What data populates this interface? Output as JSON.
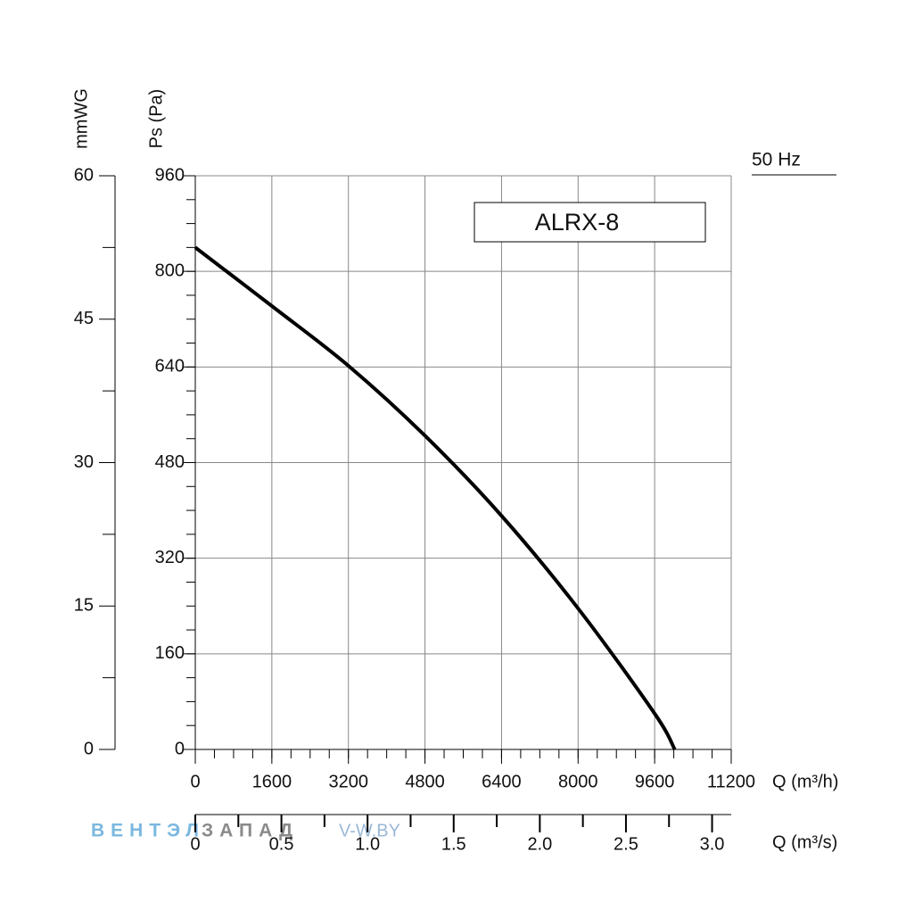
{
  "chart_data": {
    "type": "line",
    "title": "ALRX-8",
    "subtitle": "50 Hz",
    "x_label": "Q (m³/h)",
    "y_label": "Ps (Pa)",
    "y2_label": "mmWG",
    "x2_label": "Q (m³/s)",
    "x": [
      0,
      1600,
      3200,
      4800,
      6400,
      8000,
      9600,
      10020
    ],
    "series": [
      {
        "name": "ALRX-8",
        "color": "#000000",
        "values": [
          840,
          742,
          642,
          525,
          391,
          236,
          60,
          0
        ]
      }
    ],
    "xlim": [
      0,
      11200
    ],
    "xticks": [
      0,
      1600,
      3200,
      4800,
      6400,
      8000,
      9600,
      11200
    ],
    "xminorticks": [
      0,
      400,
      800,
      1200,
      1600,
      2000,
      2400,
      2800,
      3200,
      3600,
      4000,
      4400,
      4800,
      5200,
      5600,
      6000,
      6400,
      6800,
      7200,
      7600,
      8000,
      8400,
      8800,
      9200,
      9600,
      10000,
      10400,
      10800,
      11200
    ],
    "ylim": [
      0,
      960
    ],
    "yticks": [
      0,
      160,
      320,
      480,
      640,
      800,
      960
    ],
    "yminorticks": [
      0,
      40,
      80,
      120,
      160,
      200,
      240,
      280,
      320,
      360,
      400,
      440,
      480,
      520,
      560,
      600,
      640,
      680,
      720,
      760,
      800,
      840,
      880,
      920,
      960
    ],
    "y2lim": [
      0,
      60
    ],
    "y2ticks": [
      0,
      15,
      30,
      45,
      60
    ],
    "y2minorticks": [
      7.5,
      22.5,
      37.5,
      52.5
    ],
    "x2lim": [
      0,
      3.1111
    ],
    "x2ticks": [
      0,
      0.5,
      {
        "value": 1,
        "label": "1.0"
      },
      1.5,
      {
        "value": 2,
        "label": "2.0"
      },
      2.5,
      {
        "value": 3,
        "label": "3.0"
      }
    ],
    "x2minorticks": [
      0.25,
      0.75,
      1.25,
      1.75,
      2.25,
      2.75
    ],
    "grid": true,
    "watermark": [
      "ВЕНТЭЛ",
      "ЗАПАД",
      "V-W.BY"
    ]
  }
}
